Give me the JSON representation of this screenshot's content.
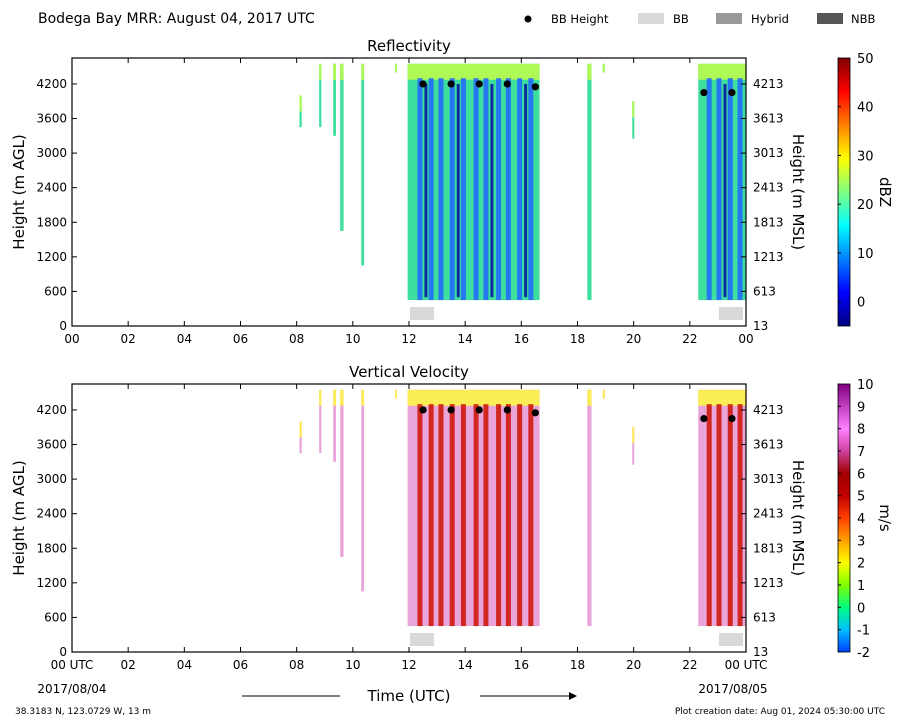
{
  "header": {
    "title": "Bodega Bay MRR:  August 04, 2017 UTC",
    "legend": [
      {
        "label": "BB Height",
        "kind": "dot",
        "color": "#000000"
      },
      {
        "label": "BB",
        "kind": "box",
        "color": "#d9d9d9"
      },
      {
        "label": "Hybrid",
        "kind": "box",
        "color": "#999999"
      },
      {
        "label": "NBB",
        "kind": "box",
        "color": "#555555"
      }
    ]
  },
  "footer": {
    "xlabel": "Time (UTC)",
    "start_date": "2017/08/04",
    "end_date": "2017/08/05",
    "location": "38.3183 N, 123.0729 W, 13 m",
    "creation": "Plot creation date: Aug 01, 2024 05:30:00 UTC"
  },
  "chart_data": [
    {
      "type": "heatmap",
      "title": "Reflectivity",
      "ylabel": "Height (m AGL)",
      "ylabel_right": "Height (m MSL)",
      "x_ticks": [
        "00",
        "02",
        "04",
        "06",
        "08",
        "10",
        "12",
        "14",
        "16",
        "18",
        "20",
        "22",
        "00"
      ],
      "xlim": [
        0,
        24
      ],
      "ylim": [
        0,
        4650
      ],
      "y_ticks": [
        0,
        600,
        1200,
        1800,
        2400,
        3000,
        3600,
        4200
      ],
      "y_ticks_right": [
        13,
        613,
        1213,
        1813,
        2413,
        3013,
        3613,
        4213
      ],
      "colorbar": {
        "label": "dBZ",
        "min": -5,
        "max": 50,
        "ticks": [
          0,
          10,
          20,
          30,
          40,
          50
        ],
        "colors": [
          "#000080",
          "#0000ff",
          "#0080ff",
          "#00ffff",
          "#80ff80",
          "#ffff00",
          "#ff8000",
          "#ff0000",
          "#800000"
        ]
      },
      "bb_height": {
        "x": [
          12.5,
          13.5,
          14.5,
          15.5,
          16.5,
          22.5,
          23.5
        ],
        "y": [
          4200,
          4200,
          4200,
          4200,
          4150,
          4050,
          4050
        ]
      },
      "bb_type": [
        {
          "type": "BB",
          "x": [
            12.0,
            13.0
          ]
        },
        {
          "type": "BB",
          "x": [
            23.0,
            24.0
          ]
        }
      ]
    },
    {
      "type": "heatmap",
      "title": "Vertical Velocity",
      "ylabel": "Height (m AGL)",
      "ylabel_right": "Height (m MSL)",
      "x_ticks": [
        "00 UTC",
        "02",
        "04",
        "06",
        "08",
        "10",
        "12",
        "14",
        "16",
        "18",
        "20",
        "22",
        "00 UTC"
      ],
      "xlim": [
        0,
        24
      ],
      "ylim": [
        0,
        4650
      ],
      "y_ticks": [
        0,
        600,
        1200,
        1800,
        2400,
        3000,
        3600,
        4200
      ],
      "y_ticks_right": [
        13,
        613,
        1213,
        1813,
        2413,
        3013,
        3613,
        4213
      ],
      "colorbar": {
        "label": "m/s",
        "min": -2,
        "max": 10,
        "ticks": [
          -2,
          -1,
          0,
          1,
          2,
          3,
          4,
          5,
          6,
          7,
          8,
          9,
          10
        ],
        "colors": [
          "#0040ff",
          "#00c0ff",
          "#00ff80",
          "#80ff00",
          "#ffff00",
          "#ffa000",
          "#ff4000",
          "#c00000",
          "#a00000",
          "#d040a0",
          "#ff80ff",
          "#c040c0",
          "#800080"
        ]
      },
      "bb_height": {
        "x": [
          12.5,
          13.5,
          14.5,
          15.5,
          16.5,
          22.5,
          23.5
        ],
        "y": [
          4200,
          4200,
          4200,
          4200,
          4150,
          4050,
          4050
        ]
      },
      "bb_type": [
        {
          "type": "BB",
          "x": [
            12.0,
            13.0
          ]
        },
        {
          "type": "BB",
          "x": [
            23.0,
            24.0
          ]
        }
      ]
    }
  ]
}
